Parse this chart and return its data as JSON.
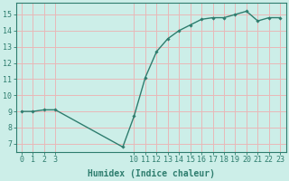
{
  "x": [
    0,
    1,
    2,
    3,
    9,
    10,
    11,
    12,
    13,
    14,
    15,
    16,
    17,
    18,
    19,
    20,
    21,
    22,
    23
  ],
  "y": [
    9.0,
    9.0,
    9.1,
    9.1,
    6.8,
    8.7,
    11.1,
    12.7,
    13.5,
    14.0,
    14.35,
    14.7,
    14.8,
    14.8,
    15.0,
    15.2,
    14.6,
    14.8,
    14.8
  ],
  "line_color": "#2e7d6e",
  "marker": "D",
  "marker_size": 1.8,
  "bg_color": "#cceee8",
  "grid_color": "#e8b8b8",
  "xlabel": "Humidex (Indice chaleur)",
  "ylim": [
    6.5,
    15.7
  ],
  "xlim": [
    -0.5,
    23.5
  ],
  "yticks": [
    7,
    8,
    9,
    10,
    11,
    12,
    13,
    14,
    15
  ],
  "xticks": [
    0,
    1,
    2,
    3,
    10,
    11,
    12,
    13,
    14,
    15,
    16,
    17,
    18,
    19,
    20,
    21,
    22,
    23
  ],
  "xlabel_fontsize": 7.0,
  "tick_fontsize": 6.0,
  "linewidth": 1.0
}
